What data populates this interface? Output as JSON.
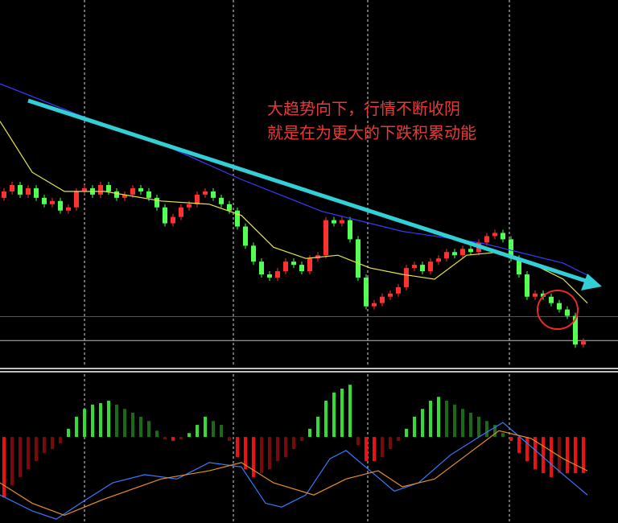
{
  "chart_data": [
    {
      "type": "candlestick",
      "annotations": [
        "大趋势向下，行情不断收阴",
        "就是在为更大的下跌积累动能"
      ],
      "xlim": [
        -0.5,
        76.3
      ],
      "ylim": [
        0,
        115
      ],
      "up_color": "#ff3232",
      "down_color": "#54ff54",
      "open": [
        53,
        55,
        57,
        54,
        56,
        53,
        51,
        52,
        49,
        50,
        55,
        56,
        54,
        57,
        55,
        53,
        54,
        56,
        55,
        53,
        50,
        45,
        47,
        50,
        51,
        54,
        55,
        53,
        51,
        49,
        44,
        38,
        33,
        29,
        28,
        30,
        33,
        32,
        30,
        34,
        35,
        46,
        45,
        46,
        40,
        28,
        19,
        20,
        22,
        23,
        25,
        31,
        32,
        30,
        33,
        34,
        36,
        35,
        37,
        36,
        39,
        41,
        42,
        40,
        34,
        29,
        22,
        23,
        22,
        20,
        18,
        16,
        7
      ],
      "high": [
        56,
        58,
        58,
        57,
        57,
        54,
        53,
        53,
        51,
        56,
        57,
        57,
        58,
        58,
        56,
        55,
        57,
        57,
        56,
        54,
        51,
        48,
        51,
        52,
        55,
        56,
        56,
        54,
        52,
        50,
        45,
        39,
        34,
        30,
        31,
        34,
        34,
        33,
        35,
        36,
        47,
        47,
        47,
        47,
        41,
        29,
        21,
        23,
        24,
        26,
        32,
        33,
        33,
        34,
        35,
        37,
        37,
        38,
        38,
        40,
        42,
        43,
        43,
        41,
        35,
        30,
        24,
        24,
        23,
        21,
        19,
        17,
        9
      ],
      "low": [
        52,
        54,
        53,
        53,
        52,
        50,
        50,
        48,
        48,
        49,
        54,
        53,
        53,
        54,
        52,
        52,
        53,
        54,
        52,
        49,
        44,
        44,
        46,
        49,
        50,
        53,
        52,
        50,
        48,
        43,
        37,
        32,
        28,
        27,
        27,
        29,
        31,
        29,
        29,
        33,
        34,
        44,
        44,
        39,
        27,
        18,
        18,
        19,
        21,
        22,
        24,
        30,
        29,
        29,
        32,
        33,
        34,
        34,
        35,
        35,
        38,
        40,
        39,
        33,
        28,
        21,
        21,
        21,
        19,
        17,
        15,
        6,
        6
      ],
      "close": [
        55,
        57,
        54,
        56,
        53,
        51,
        52,
        49,
        50,
        55,
        56,
        54,
        57,
        55,
        53,
        54,
        56,
        55,
        53,
        50,
        45,
        47,
        50,
        51,
        54,
        55,
        53,
        51,
        49,
        44,
        38,
        33,
        29,
        28,
        30,
        33,
        32,
        30,
        34,
        35,
        46,
        45,
        46,
        40,
        28,
        19,
        20,
        22,
        23,
        25,
        31,
        32,
        30,
        33,
        34,
        36,
        35,
        37,
        36,
        39,
        41,
        42,
        40,
        34,
        29,
        22,
        23,
        22,
        20,
        18,
        16,
        7,
        8
      ],
      "lines": [
        {
          "color": "#e6e64a",
          "x": [
            -0.5,
            3.5,
            7.5,
            12.5,
            19.5,
            25.5,
            29.5,
            33.5,
            37.5,
            41.5,
            45.5,
            49.5,
            53.5,
            57.5,
            61.5,
            65.5,
            69.5,
            72.5
          ],
          "values": [
            77,
            61,
            55,
            55,
            52,
            51,
            47.5,
            37.5,
            34,
            35,
            31,
            29,
            27.5,
            35,
            36,
            32.5,
            27.5,
            20
          ]
        },
        {
          "color": "#3a3aff",
          "x": [
            -0.5,
            9.5,
            19.5,
            29.5,
            39.5,
            49.5,
            59.5,
            69.5,
            72.5
          ],
          "values": [
            88.75,
            78.75,
            70,
            58.75,
            48.75,
            42.5,
            38.75,
            32.5,
            28.75
          ]
        }
      ],
      "hlines": [
        {
          "value": 15.75,
          "color": "#d02020"
        },
        {
          "value": 8.25,
          "color": "#bbbbbb"
        }
      ],
      "vlines": [
        10,
        28.5,
        45.2,
        62.8
      ]
    },
    {
      "type": "macd",
      "xlim": [
        -0.5,
        76.3
      ],
      "ylim": [
        -1.78,
        1.3
      ],
      "colors": {
        "up": "#33dd33",
        "up_fade": "#1b6a1b",
        "down": "#ee1111",
        "down_fade": "#7a0a0a"
      },
      "values": [
        -1.25,
        -1,
        -0.83,
        -0.67,
        -0.5,
        -0.33,
        -0.25,
        -0.13,
        0.17,
        0.42,
        0.58,
        0.67,
        0.7,
        0.75,
        0.67,
        0.58,
        0.5,
        0.42,
        0.33,
        0.13,
        -0.05,
        -0.08,
        -0.05,
        0.08,
        0.25,
        0.42,
        0.33,
        0.25,
        -0.08,
        -0.42,
        -0.67,
        -0.83,
        -0.75,
        -0.67,
        -0.5,
        -0.42,
        -0.25,
        -0.08,
        0.17,
        0.42,
        0.75,
        0.92,
        1,
        1.08,
        -0.17,
        -0.5,
        -0.5,
        -0.42,
        -0.25,
        -0.08,
        0.17,
        0.42,
        0.58,
        0.75,
        0.83,
        0.75,
        0.67,
        0.58,
        0.5,
        0.42,
        0.33,
        0.25,
        0.08,
        -0.08,
        -0.33,
        -0.5,
        -0.67,
        -0.75,
        -0.83,
        -0.75,
        -0.75,
        -0.75,
        -0.75
      ],
      "lines": [
        {
          "color": "#3a7aff",
          "x": [
            -0.5,
            3.5,
            6.5,
            9.5,
            13.5,
            17.5,
            21.5,
            25.5,
            29.5,
            32.5,
            34.5,
            37.5,
            40.5,
            42.5,
            45.5,
            48.5,
            51.5,
            55.5,
            59.5,
            62,
            65.5,
            69.5,
            72.5
          ],
          "values": [
            -1.2,
            -1.53,
            -1.7,
            -1.37,
            -0.95,
            -0.78,
            -0.87,
            -0.53,
            -0.62,
            -1.37,
            -1.45,
            -1.2,
            -0.45,
            -0.28,
            -0.7,
            -1.12,
            -0.95,
            -0.37,
            0.05,
            0.3,
            -0.2,
            -0.78,
            -1.2
          ]
        },
        {
          "color": "#e8902a",
          "x": [
            -0.5,
            3.5,
            7.5,
            12.5,
            19.5,
            25.5,
            29.5,
            33.5,
            38.5,
            42.5,
            46.5,
            49.5,
            53.5,
            57.5,
            61.5,
            65.5,
            69.5,
            72.5
          ],
          "values": [
            -0.95,
            -1.37,
            -1.62,
            -1.28,
            -0.87,
            -0.7,
            -0.53,
            -0.95,
            -1.2,
            -0.87,
            -0.7,
            -1.03,
            -0.87,
            -0.37,
            0.13,
            -0.03,
            -0.45,
            -0.7
          ]
        }
      ],
      "vlines": [
        10,
        28.5,
        45.2,
        62.8
      ]
    }
  ]
}
